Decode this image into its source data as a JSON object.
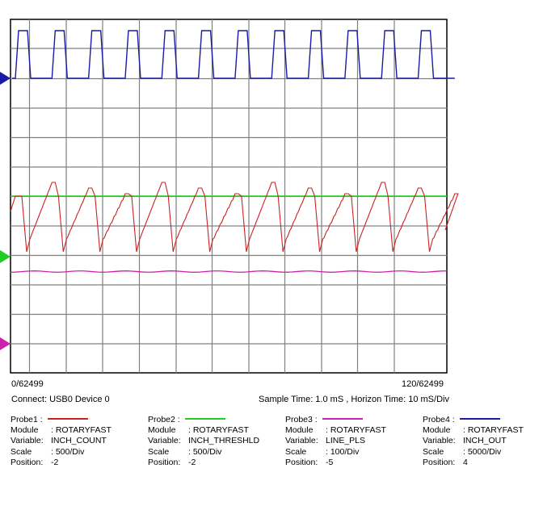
{
  "scope": {
    "start_label": "0/62499",
    "end_label": "120/62499",
    "connect_label": "Connect: USB0 Device 0",
    "sample_label": "Sample Time: 1.0 mS  ,  Horizon Time: 10 mS/Div",
    "grid_color": "#808080",
    "cycles": 12
  },
  "probes": [
    {
      "title": "Probe1 :",
      "color": "#cc2222",
      "module_key": "Module",
      "module": ": ROTARYFAST",
      "variable_key": "Variable:",
      "variable": "INCH_COUNT",
      "scale_key": "Scale",
      "scale": ":  500/Div",
      "position_key": "Position:",
      "position": "-2",
      "marker_shape": "none"
    },
    {
      "title": "Probe2 :",
      "color": "#22cc22",
      "module_key": "Module",
      "module": ": ROTARYFAST",
      "variable_key": "Variable:",
      "variable": "INCH_THRESHLD",
      "scale_key": "Scale",
      "scale": ":  500/Div",
      "position_key": "Position:",
      "position": "-2",
      "marker_shape": "triangle"
    },
    {
      "title": "Probe3 :",
      "color": "#cc22aa",
      "module_key": "Module",
      "module": ": ROTARYFAST",
      "variable_key": "Variable:",
      "variable": "LINE_PLS",
      "scale_key": "Scale",
      "scale": ":  100/Div",
      "position_key": "Position:",
      "position": "-5",
      "marker_shape": "triangle"
    },
    {
      "title": "Probe4 :",
      "color": "#1a1aa6",
      "module_key": "Module",
      "module": ": ROTARYFAST",
      "variable_key": "Variable:",
      "variable": "INCH_OUT",
      "scale_key": "Scale",
      "scale": ":  5000/Div",
      "position_key": "Position:",
      "position": "4",
      "marker_shape": "triangle"
    }
  ]
}
